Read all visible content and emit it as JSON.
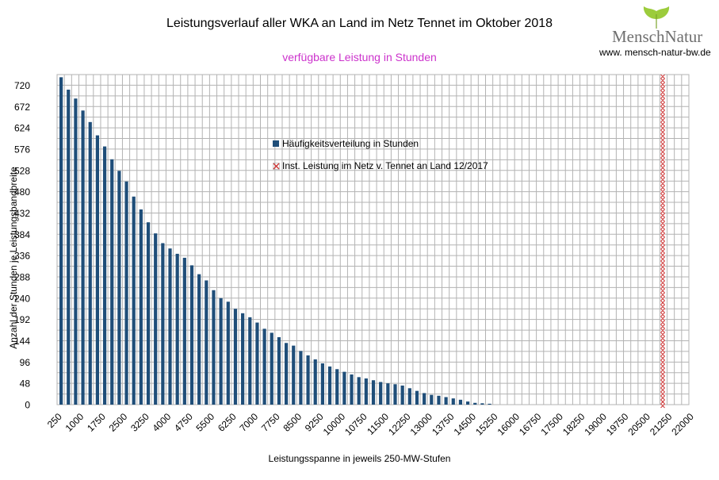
{
  "header": {
    "title": "Leistungsverlauf aller WKA an Land im Netz Tennet im Oktober 2018",
    "subtitle": "verfügbare Leistung in Stunden",
    "subtitle_color": "#cc33cc"
  },
  "logo": {
    "name": "MenschNatur",
    "url": "www. mensch-natur-bw.de",
    "leaf_color": "#9ccc3c"
  },
  "chart_data": {
    "type": "bar",
    "title": "Leistungsverlauf aller WKA an Land im Netz Tennet im Oktober 2018",
    "subtitle": "verfügbare Leistung in Stunden",
    "xlabel": "Leistungsspanne in jeweils 250-MW-Stufen",
    "ylabel": "Anzahl der Stunden je Leistungsbandbreite",
    "ylim": [
      0,
      744
    ],
    "yticks": [
      0,
      48,
      96,
      144,
      192,
      240,
      288,
      336,
      384,
      432,
      480,
      528,
      576,
      624,
      672,
      720
    ],
    "xlim": [
      250,
      22000
    ],
    "x_tick_labels": [
      "250",
      "1000",
      "1750",
      "2500",
      "3250",
      "4000",
      "4750",
      "5500",
      "6250",
      "7000",
      "7750",
      "8500",
      "9250",
      "10000",
      "10750",
      "11500",
      "12250",
      "13000",
      "13750",
      "14500",
      "15250",
      "16000",
      "16750",
      "17500",
      "18250",
      "19000",
      "19750",
      "20500",
      "21250",
      "22000"
    ],
    "grid": true,
    "legend_position": "upper-center",
    "bar_color": "#1f4e79",
    "series": [
      {
        "name": "Häufigkeitsverteilung in Stunden",
        "x": [
          250,
          500,
          750,
          1000,
          1250,
          1500,
          1750,
          2000,
          2250,
          2500,
          2750,
          3000,
          3250,
          3500,
          3750,
          4000,
          4250,
          4500,
          4750,
          5000,
          5250,
          5500,
          5750,
          6000,
          6250,
          6500,
          6750,
          7000,
          7250,
          7500,
          7750,
          8000,
          8250,
          8500,
          8750,
          9000,
          9250,
          9500,
          9750,
          10000,
          10250,
          10500,
          10750,
          11000,
          11250,
          11500,
          11750,
          12000,
          12250,
          12500,
          12750,
          13000,
          13250,
          13500,
          13750,
          14000,
          14250,
          14500,
          14750,
          15000
        ],
        "values": [
          738,
          710,
          690,
          663,
          637,
          607,
          582,
          553,
          527,
          503,
          469,
          440,
          411,
          386,
          364,
          352,
          340,
          331,
          314,
          294,
          280,
          258,
          240,
          232,
          216,
          206,
          197,
          185,
          171,
          162,
          152,
          139,
          133,
          121,
          111,
          102,
          93,
          86,
          80,
          74,
          68,
          62,
          59,
          55,
          51,
          48,
          46,
          43,
          37,
          31,
          26,
          22,
          20,
          17,
          14,
          11,
          7,
          4,
          3,
          2
        ]
      },
      {
        "name": "Inst. Leistung im Netz v. Tennet an Land 12/2017",
        "x": 21100,
        "color": "#cc3333"
      }
    ]
  }
}
